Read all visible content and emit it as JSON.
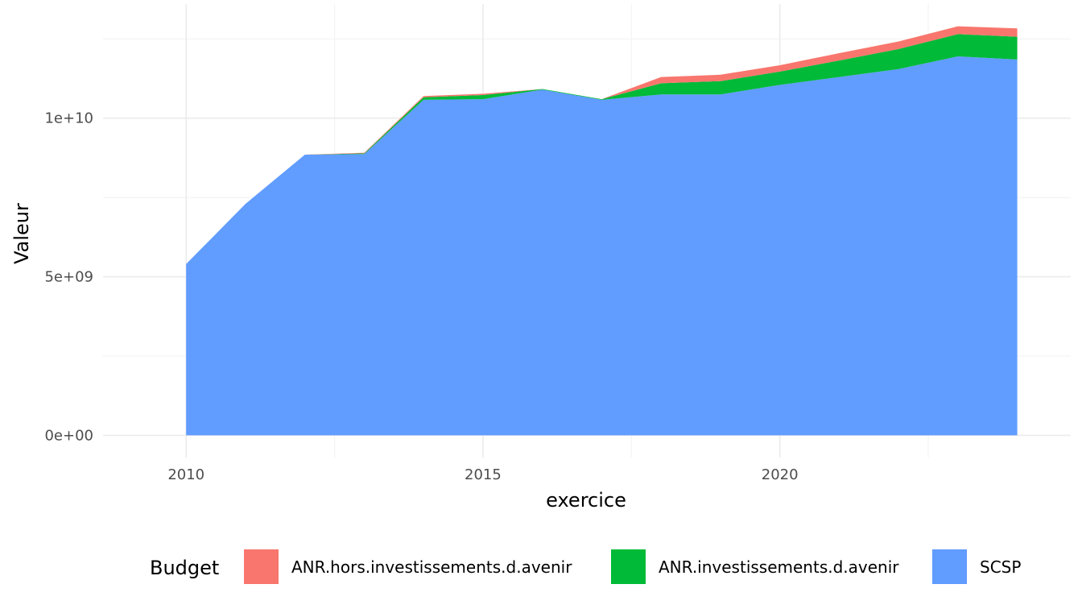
{
  "chart_data": {
    "type": "area",
    "stacked": true,
    "xlabel": "exercice",
    "ylabel": "Valeur",
    "x": [
      2010,
      2011,
      2012,
      2013,
      2014,
      2015,
      2016,
      2017,
      2018,
      2019,
      2020,
      2021,
      2022,
      2023,
      2024
    ],
    "xlim": [
      2008.6,
      2024.9
    ],
    "ylim": [
      -700000000,
      13600000000
    ],
    "xticks": [
      2010,
      2015,
      2020
    ],
    "yticks": [
      0,
      5000000000,
      10000000000
    ],
    "xtick_labels": [
      "2010",
      "2015",
      "2020"
    ],
    "ytick_labels": [
      "0e+00",
      "5e+09",
      "1e+10"
    ],
    "grid": true,
    "legend": {
      "title": "Budget",
      "position": "bottom",
      "entries": [
        {
          "label": "ANR.hors.investissements.d.avenir",
          "color": "#F8766D"
        },
        {
          "label": "ANR.investissements.d.avenir",
          "color": "#00BA38"
        },
        {
          "label": "SCSP",
          "color": "#619CFF"
        }
      ]
    },
    "series": [
      {
        "name": "SCSP",
        "color": "#619CFF",
        "values": [
          5400000000,
          7300000000,
          8850000000,
          8870000000,
          10580000000,
          10600000000,
          10900000000,
          10580000000,
          10750000000,
          10750000000,
          11050000000,
          11300000000,
          11550000000,
          11950000000,
          11850000000
        ]
      },
      {
        "name": "ANR.investissements.d.avenir",
        "color": "#00BA38",
        "values": [
          0,
          0,
          0,
          20000000,
          80000000,
          130000000,
          20000000,
          20000000,
          350000000,
          420000000,
          420000000,
          520000000,
          630000000,
          700000000,
          720000000
        ]
      },
      {
        "name": "ANR.hors.investissements.d.avenir",
        "color": "#F8766D",
        "values": [
          0,
          0,
          0,
          20000000,
          40000000,
          40000000,
          0,
          0,
          200000000,
          200000000,
          200000000,
          230000000,
          240000000,
          250000000,
          260000000
        ]
      }
    ]
  }
}
